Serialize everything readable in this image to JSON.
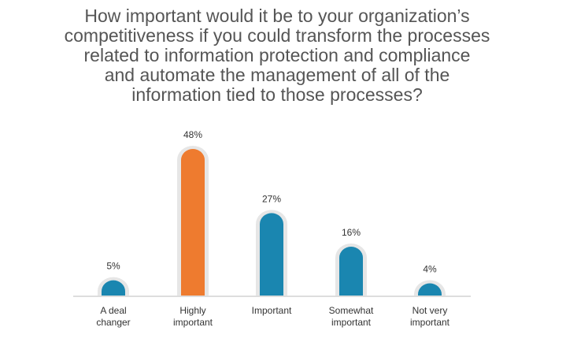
{
  "chart_data": {
    "type": "bar",
    "title": [
      "How important would it be to your organization’s",
      "competitiveness if you could transform the processes",
      "related to information protection and compliance",
      "and automate the management of all of the",
      "information tied to those processes?"
    ],
    "categories": [
      "A deal changer",
      "Highly important",
      "Important",
      "Somewhat important",
      "Not very important"
    ],
    "values": [
      5,
      48,
      27,
      16,
      4
    ],
    "value_labels": [
      "5%",
      "48%",
      "27%",
      "16%",
      "4%"
    ],
    "colors": [
      "#1a86b0",
      "#ee7b2f",
      "#1a86b0",
      "#1a86b0",
      "#1a86b0"
    ]
  }
}
